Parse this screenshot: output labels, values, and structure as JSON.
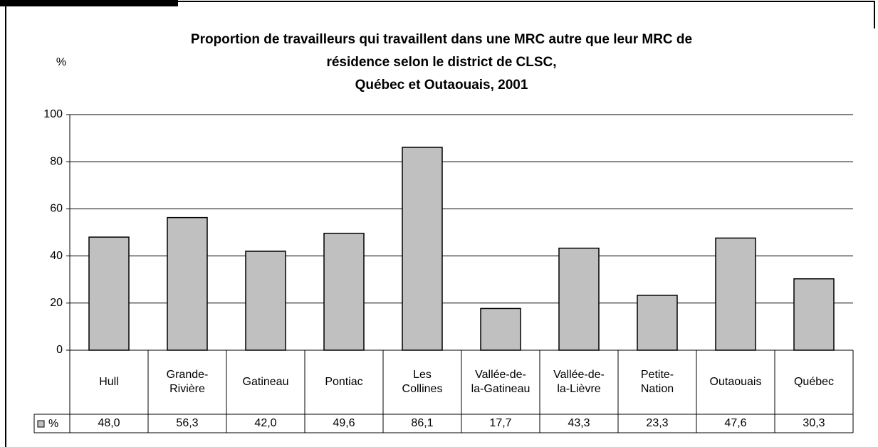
{
  "chart_data": {
    "type": "bar",
    "title": "Proportion de travailleurs qui travaillent dans une MRC autre que leur MRC de\nrésidence selon le district de CLSC,\nQuébec et Outaouais, 2001",
    "y_label": "%",
    "categories": [
      "Hull",
      "Grande-\nRivière",
      "Gatineau",
      "Pontiac",
      "Les\nCollines",
      "Vallée-de-\nla-Gatineau",
      "Vallée-de-\nla-Lièvre",
      "Petite-\nNation",
      "Outaouais",
      "Québec"
    ],
    "series": [
      {
        "name": "%",
        "color": "#c0c0c0",
        "values": [
          48.0,
          56.3,
          42.0,
          49.6,
          86.1,
          17.7,
          43.3,
          23.3,
          47.6,
          30.3
        ],
        "value_labels": [
          "48,0",
          "56,3",
          "42,0",
          "49,6",
          "86,1",
          "17,7",
          "43,3",
          "23,3",
          "47,6",
          "30,3"
        ]
      }
    ],
    "ylim": [
      0,
      100
    ],
    "yticks": [
      0,
      20,
      40,
      60,
      80,
      100
    ],
    "grid": true
  }
}
